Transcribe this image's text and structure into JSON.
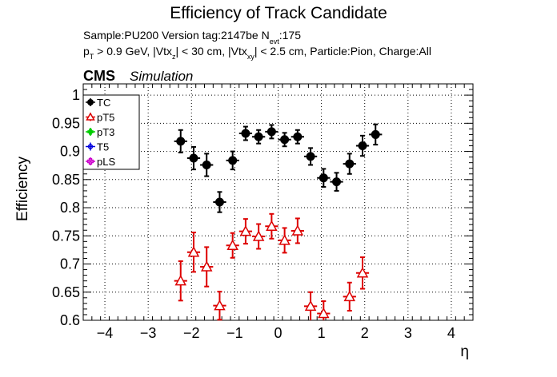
{
  "chart_data": {
    "type": "scatter",
    "title": "Efficiency of Track Candidate",
    "info_line1": "Sample:PU200   Version tag:2147be  N",
    "info_line1_sub": "evt",
    "info_line1_val": ":175",
    "info_line2_parts": [
      "p",
      "T",
      " > 0.9 GeV, |Vtx",
      "z",
      "| < 30 cm, |Vtx",
      "xy",
      "| < 2.5 cm, Particle:Pion, Charge:All"
    ],
    "cms_label": "CMS",
    "cms_sub": "Simulation",
    "xlabel": "η",
    "ylabel": "Efficiency",
    "xlim": [
      -4.5,
      4.5
    ],
    "ylim": [
      0.6,
      1.02
    ],
    "x_ticks": [
      "−4",
      "−3",
      "−2",
      "−1",
      "0",
      "1",
      "2",
      "3",
      "4"
    ],
    "x_tick_values": [
      -4,
      -3,
      -2,
      -1,
      0,
      1,
      2,
      3,
      4
    ],
    "y_ticks": [
      "0.6",
      "0.65",
      "0.7",
      "0.75",
      "0.8",
      "0.85",
      "0.9",
      "0.95",
      "1"
    ],
    "y_tick_values": [
      0.6,
      0.65,
      0.7,
      0.75,
      0.8,
      0.85,
      0.9,
      0.95,
      1.0
    ],
    "grid": true,
    "legend_position": "top-left",
    "x_bin_half_width": 0.15,
    "series": [
      {
        "name": "TC",
        "color": "#000000",
        "marker": "filled-circle",
        "points": [
          {
            "x": -2.25,
            "y": 0.918,
            "err": 0.02
          },
          {
            "x": -1.95,
            "y": 0.888,
            "err": 0.02
          },
          {
            "x": -1.65,
            "y": 0.876,
            "err": 0.02
          },
          {
            "x": -1.35,
            "y": 0.81,
            "err": 0.018
          },
          {
            "x": -1.05,
            "y": 0.884,
            "err": 0.016
          },
          {
            "x": -0.75,
            "y": 0.932,
            "err": 0.012
          },
          {
            "x": -0.45,
            "y": 0.926,
            "err": 0.012
          },
          {
            "x": -0.15,
            "y": 0.935,
            "err": 0.012
          },
          {
            "x": 0.15,
            "y": 0.921,
            "err": 0.012
          },
          {
            "x": 0.45,
            "y": 0.926,
            "err": 0.012
          },
          {
            "x": 0.75,
            "y": 0.891,
            "err": 0.015
          },
          {
            "x": 1.05,
            "y": 0.853,
            "err": 0.016
          },
          {
            "x": 1.35,
            "y": 0.846,
            "err": 0.016
          },
          {
            "x": 1.65,
            "y": 0.878,
            "err": 0.018
          },
          {
            "x": 1.95,
            "y": 0.91,
            "err": 0.018
          },
          {
            "x": 2.25,
            "y": 0.93,
            "err": 0.018
          }
        ]
      },
      {
        "name": "pT5",
        "color": "#dd0000",
        "marker": "open-triangle",
        "points": [
          {
            "x": -2.25,
            "y": 0.67,
            "err": 0.035
          },
          {
            "x": -1.95,
            "y": 0.721,
            "err": 0.035
          },
          {
            "x": -1.65,
            "y": 0.695,
            "err": 0.035
          },
          {
            "x": -1.35,
            "y": 0.626,
            "err": 0.025
          },
          {
            "x": -1.05,
            "y": 0.733,
            "err": 0.022
          },
          {
            "x": -0.75,
            "y": 0.758,
            "err": 0.022
          },
          {
            "x": -0.45,
            "y": 0.749,
            "err": 0.022
          },
          {
            "x": -0.15,
            "y": 0.767,
            "err": 0.022
          },
          {
            "x": 0.15,
            "y": 0.742,
            "err": 0.022
          },
          {
            "x": 0.45,
            "y": 0.759,
            "err": 0.022
          },
          {
            "x": 0.75,
            "y": 0.625,
            "err": 0.025
          },
          {
            "x": 1.05,
            "y": 0.612,
            "err": 0.022
          },
          {
            "x": 1.65,
            "y": 0.642,
            "err": 0.025
          },
          {
            "x": 1.95,
            "y": 0.684,
            "err": 0.028
          }
        ]
      },
      {
        "name": "pT3",
        "color": "#00cc00",
        "marker": "filled-cross",
        "points": []
      },
      {
        "name": "T5",
        "color": "#0000dd",
        "marker": "open-circle",
        "points": []
      },
      {
        "name": "pLS",
        "color": "#cc00cc",
        "marker": "open-cross",
        "points": []
      }
    ]
  }
}
